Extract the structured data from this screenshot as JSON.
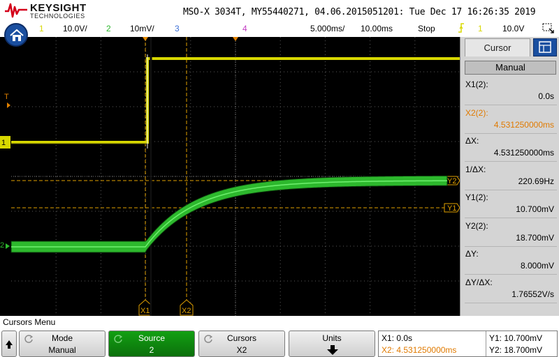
{
  "header": {
    "brand": "KEYSIGHT",
    "brand_sub": "TECHNOLOGIES",
    "title": "MSO-X 3034T, MY55440271, 04.06.2015051201: Tue Dec 17 16:26:35 2019"
  },
  "channel_bar": {
    "ch1_num": "1",
    "ch1_scale": "10.0V/",
    "ch2_num": "2",
    "ch2_scale": "10mV/",
    "ch3_num": "3",
    "ch4_num": "4",
    "timebase": "5.000ms/",
    "delay": "10.00ms",
    "run_state": "Stop",
    "trigger_source": "1",
    "trigger_level": "10.0V"
  },
  "scope": {
    "trigger_marker": "T",
    "ch1_marker": "1",
    "ch2_marker": "2",
    "cursor_x1_label": "X1",
    "cursor_x2_label": "X2",
    "cursor_y1_label": "Y1",
    "cursor_y2_label": "Y2"
  },
  "cursor_panel": {
    "tab_label": "Cursor",
    "mode_button": "Manual",
    "items": [
      {
        "label": "X1(2):",
        "value": "0.0s"
      },
      {
        "label": "X2(2):",
        "value": "4.531250000ms"
      },
      {
        "label": "ΔX:",
        "value": "4.531250000ms"
      },
      {
        "label": "1/ΔX:",
        "value": "220.69Hz"
      },
      {
        "label": "Y1(2):",
        "value": "10.700mV"
      },
      {
        "label": "Y2(2):",
        "value": "18.700mV"
      },
      {
        "label": "ΔY:",
        "value": "8.000mV"
      },
      {
        "label": "ΔY/ΔX:",
        "value": "1.76552V/s"
      }
    ]
  },
  "menu": {
    "title": "Cursors Menu",
    "softkeys": [
      {
        "line1": "Mode",
        "line2": "Manual"
      },
      {
        "line1": "Source",
        "line2": "2"
      },
      {
        "line1": "Cursors",
        "line2": "X2"
      },
      {
        "line1": "Units",
        "line2": ""
      }
    ],
    "readout": {
      "x1": "X1:  0.0s",
      "x2": "X2:  4.531250000ms",
      "y1": "Y1: 10.700mV",
      "y2": "Y2: 18.700mV"
    }
  },
  "colors": {
    "ch1": "#d8d800",
    "ch2": "#2db82d",
    "cursor": "#e0a000",
    "active_key": "#0c8a0c"
  },
  "icons": {
    "logo": "keysight-wave-logo",
    "home": "home-icon",
    "zoom": "zoom-box-icon",
    "back": "up-arrow-icon",
    "units_arrow": "down-arrow-icon",
    "knob": "entry-knob-icon",
    "trigger": "trigger-edge-icon"
  }
}
